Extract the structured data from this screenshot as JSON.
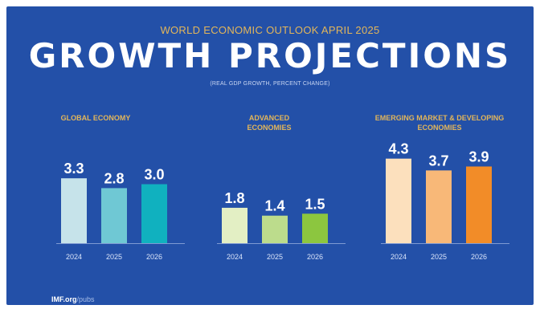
{
  "header": {
    "supertitle": "WORLD ECONOMIC OUTLOOK APRIL 2025",
    "title": "GROWTH PROJECTIONS",
    "subtitle": "(REAL GDP GROWTH, PERCENT CHANGE)"
  },
  "source": {
    "domain": "IMF.org",
    "path": "/pubs"
  },
  "colors": {
    "background": "#2350a8",
    "group_title": "#e3b65a",
    "label": "#ffffff",
    "tick": "#dbe5fa"
  },
  "chart_data": [
    {
      "type": "bar",
      "title": "GLOBAL ECONOMY",
      "categories": [
        "2024",
        "2025",
        "2026"
      ],
      "values": [
        3.3,
        2.8,
        3.0
      ],
      "colors": [
        "#c6e3ea",
        "#6fc8d4",
        "#10b1bf"
      ],
      "ylim": [
        0,
        5
      ]
    },
    {
      "type": "bar",
      "title": "ADVANCED ECONOMIES",
      "categories": [
        "2024",
        "2025",
        "2026"
      ],
      "values": [
        1.8,
        1.4,
        1.5
      ],
      "colors": [
        "#e3efc4",
        "#bcdc8c",
        "#8cc63f"
      ],
      "ylim": [
        0,
        5
      ]
    },
    {
      "type": "bar",
      "title": "EMERGING MARKET & DEVELOPING ECONOMIES",
      "categories": [
        "2024",
        "2025",
        "2026"
      ],
      "values": [
        4.3,
        3.7,
        3.9
      ],
      "colors": [
        "#fce0bd",
        "#f8b878",
        "#f28c28"
      ],
      "ylim": [
        0,
        5
      ]
    }
  ]
}
